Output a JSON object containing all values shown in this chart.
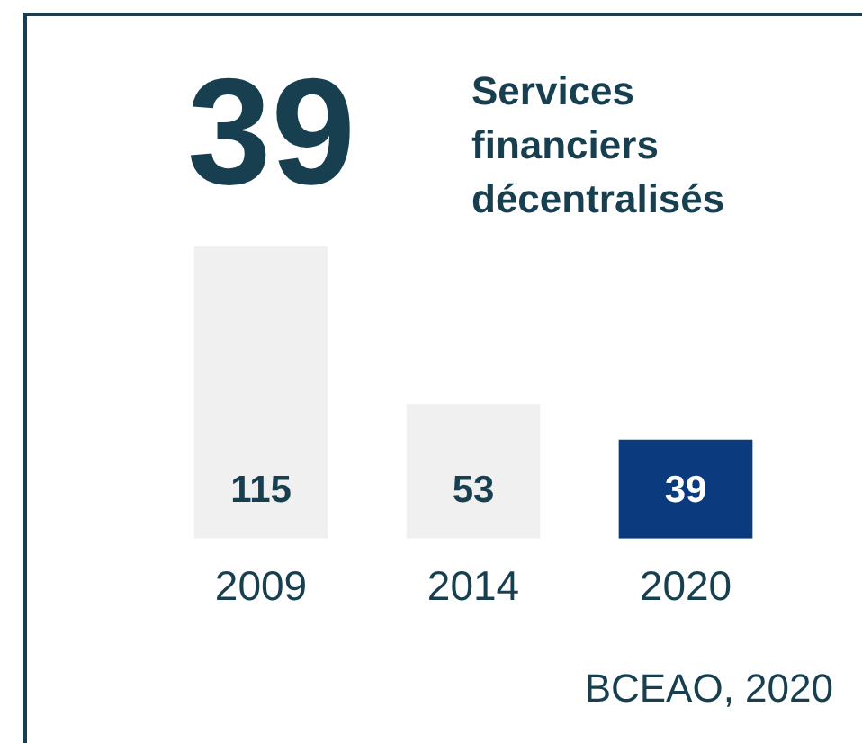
{
  "chart_data": {
    "type": "bar",
    "title": "39",
    "subtitle": "Services financiers décentralisés",
    "categories": [
      "2009",
      "2014",
      "2020"
    ],
    "values": [
      115,
      53,
      39
    ],
    "colors": [
      "#f0f0f0",
      "#f0f0f0",
      "#0b3a7e"
    ],
    "data_labels": true,
    "grid": false,
    "legend": false,
    "tick_labels": "x",
    "annotations": [
      "BCEAO, 2020"
    ]
  }
}
